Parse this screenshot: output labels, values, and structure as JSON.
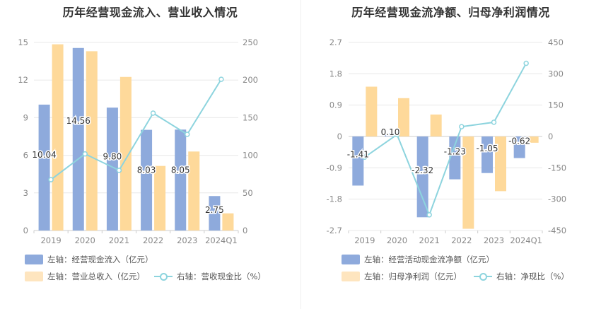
{
  "chart_data": [
    {
      "type": "bar",
      "title": "历年经营现金流入、营业收入情况",
      "categories": [
        "2019",
        "2020",
        "2021",
        "2022",
        "2023",
        "2024Q1"
      ],
      "y_left": {
        "ticks": [
          "0",
          "3",
          "6",
          "9",
          "12",
          "15"
        ],
        "min": 0,
        "max": 15
      },
      "y_right": {
        "ticks": [
          "0",
          "50",
          "100",
          "150",
          "200",
          "250"
        ],
        "min": 0,
        "max": 250
      },
      "series": [
        {
          "name": "左轴：经营现金流入（亿元）",
          "axis": "left",
          "kind": "bar",
          "color": "#8eaadc",
          "values": [
            10.04,
            14.56,
            9.8,
            8.03,
            8.05,
            2.75
          ],
          "labels": [
            "10.04",
            "14.56",
            "9.80",
            "8.03",
            "8.05",
            "2.75"
          ]
        },
        {
          "name": "左轴：营业总收入（亿元）",
          "axis": "left",
          "kind": "bar",
          "color": "#fed99a",
          "values": [
            14.85,
            14.3,
            12.25,
            5.15,
            6.3,
            1.37
          ]
        },
        {
          "name": "右轴：营收现金比（%）",
          "axis": "right",
          "kind": "line",
          "color": "#8dd4de",
          "values": [
            67.6,
            101.8,
            80.0,
            156.0,
            127.8,
            201.0
          ]
        }
      ],
      "legend": [
        "左轴：经营现金流入（亿元）",
        "左轴：营业总收入（亿元）",
        "右轴：营收现金比（%）"
      ]
    },
    {
      "type": "bar",
      "title": "历年经营现金流净额、归母净利润情况",
      "categories": [
        "2019",
        "2020",
        "2021",
        "2022",
        "2023",
        "2024Q1"
      ],
      "y_left": {
        "ticks": [
          "-2.7",
          "-1.8",
          "-0.9",
          "0",
          "0.9",
          "1.8",
          "2.7"
        ],
        "min": -2.7,
        "max": 2.7
      },
      "y_right": {
        "ticks": [
          "-450",
          "-300",
          "-150",
          "0",
          "150",
          "300",
          "450"
        ],
        "min": -450,
        "max": 450
      },
      "series": [
        {
          "name": "左轴：经营活动现金流净额（亿元）",
          "axis": "left",
          "kind": "bar",
          "color": "#8eaadc",
          "values": [
            -1.41,
            0.1,
            -2.32,
            -1.23,
            -1.05,
            -0.62
          ],
          "labels": [
            "-1.41",
            "0.10",
            "-2.32",
            "-1.23",
            "-1.05",
            "-0.62"
          ]
        },
        {
          "name": "左轴：归母净利润（亿元）",
          "axis": "left",
          "kind": "bar",
          "color": "#fed99a",
          "values": [
            1.43,
            1.1,
            0.63,
            -2.65,
            -1.57,
            -0.18
          ]
        },
        {
          "name": "右轴：净现比（%）",
          "axis": "right",
          "kind": "line",
          "color": "#8dd4de",
          "values": [
            -99,
            9,
            -375,
            47,
            68,
            350
          ]
        }
      ],
      "legend": [
        "左轴：经营活动现金流净额（亿元）",
        "左轴：归母净利润（亿元）",
        "右轴：净现比（%）"
      ]
    }
  ]
}
